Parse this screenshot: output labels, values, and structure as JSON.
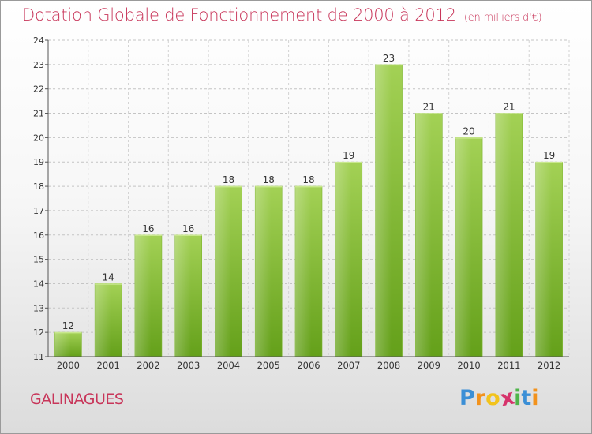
{
  "chart_data": {
    "type": "bar",
    "title": "Dotation Globale de Fonctionnement de 2000 à 2012",
    "unit_note": "(en milliers d'€)",
    "categories": [
      "2000",
      "2001",
      "2002",
      "2003",
      "2004",
      "2005",
      "2006",
      "2007",
      "2008",
      "2009",
      "2010",
      "2011",
      "2012"
    ],
    "values": [
      12,
      14,
      16,
      16,
      18,
      18,
      18,
      19,
      23,
      21,
      20,
      21,
      19
    ],
    "ylim": [
      11,
      24
    ],
    "yticks": [
      11,
      12,
      13,
      14,
      15,
      16,
      17,
      18,
      19,
      20,
      21,
      22,
      23,
      24
    ],
    "xlabel": "",
    "ylabel": "",
    "grid": true,
    "bar_color_top": "#a3d155",
    "bar_color_bottom": "#64a01a",
    "title_color": "#c8365a"
  },
  "commune": "GALINAGUES",
  "logo": {
    "letters": [
      "P",
      "r",
      "o",
      "x",
      "i",
      "t",
      "i"
    ],
    "colors": [
      "#3b8fd6",
      "#f2921c",
      "#f2c31c",
      "#d6336b",
      "#4fb54a",
      "#3b8fd6",
      "#f2921c"
    ]
  }
}
